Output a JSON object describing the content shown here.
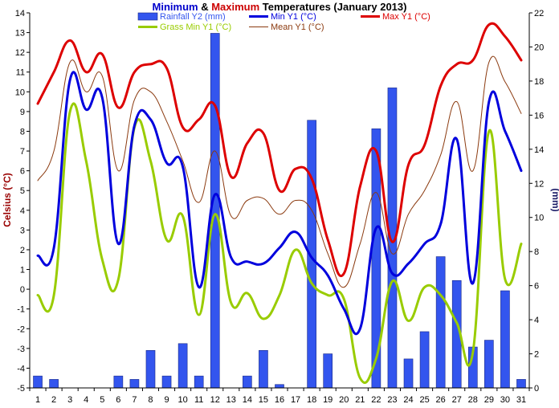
{
  "chart_data": {
    "type": "line",
    "title_parts": [
      {
        "text": "Minimum",
        "color": "#0000cc"
      },
      {
        "text": " & ",
        "color": "#000000"
      },
      {
        "text": "Maximum",
        "color": "#cc0000"
      },
      {
        "text": " Temperatures (January 2013)",
        "color": "#000000"
      }
    ],
    "ylabel": "Celsius (°C)",
    "y2label": "(mm)",
    "x": [
      1,
      2,
      3,
      4,
      5,
      6,
      7,
      8,
      9,
      10,
      11,
      12,
      13,
      14,
      15,
      16,
      17,
      18,
      19,
      20,
      21,
      22,
      23,
      24,
      25,
      26,
      27,
      28,
      29,
      30,
      31
    ],
    "x_tick_labels": [
      "1",
      "2",
      "3",
      "4",
      "5",
      "6",
      "7",
      "8",
      "9",
      "10",
      "11",
      "12",
      "13",
      "14",
      "15",
      "16",
      "17",
      "18",
      "19",
      "20",
      "21",
      "22",
      "23",
      "24",
      "25",
      "26",
      "27",
      "28",
      "29",
      "30",
      "31"
    ],
    "ylim": [
      -5,
      14
    ],
    "y_ticks": [
      -5,
      -4,
      -3,
      -2,
      -1,
      0,
      1,
      2,
      3,
      4,
      5,
      6,
      7,
      8,
      9,
      10,
      11,
      12,
      13,
      14
    ],
    "y2lim": [
      0,
      22
    ],
    "y2_ticks": [
      0,
      2,
      4,
      6,
      8,
      10,
      12,
      14,
      16,
      18,
      20,
      22
    ],
    "series": [
      {
        "name": "Rainfall Y2 (mm)",
        "kind": "bar",
        "axis": "y2",
        "color": "#3355ee",
        "values": [
          0.7,
          0.5,
          0,
          0,
          0,
          0.7,
          0.5,
          2.2,
          0.7,
          2.6,
          0.7,
          20.8,
          0,
          0.7,
          2.2,
          0.2,
          0,
          15.7,
          2,
          0,
          0,
          15.2,
          17.6,
          1.7,
          3.3,
          7.7,
          6.3,
          2.4,
          2.8,
          5.7,
          0.5
        ]
      },
      {
        "name": "Grass Min Y1 (°C)",
        "kind": "line",
        "axis": "y1",
        "color": "#99cc00",
        "values": [
          -0.3,
          -0.3,
          9.0,
          6.5,
          1.5,
          0.5,
          8.2,
          6.5,
          2.5,
          3.7,
          -1.3,
          3.8,
          -0.7,
          -0.2,
          -1.5,
          -0.3,
          2.0,
          0.3,
          -0.3,
          -0.5,
          -4.5,
          -3.5,
          0.4,
          -1.6,
          0.1,
          -0.3,
          -1.7,
          -3.2,
          8.0,
          0.5,
          2.3
        ]
      },
      {
        "name": "Mean Y1 (°C)",
        "kind": "line",
        "axis": "y1",
        "color": "#8b3a0f",
        "values": [
          5.5,
          7.0,
          11.5,
          10.0,
          10.8,
          6.0,
          9.6,
          10.0,
          8.5,
          6.5,
          4.4,
          7.0,
          3.7,
          4.5,
          4.6,
          3.8,
          4.5,
          4.0,
          1.8,
          0.1,
          2.3,
          4.9,
          1.8,
          3.8,
          5.0,
          6.8,
          9.5,
          6.0,
          11.5,
          10.5,
          8.9
        ]
      },
      {
        "name": "Min Y1 (°C)",
        "kind": "line",
        "axis": "y1",
        "color": "#0000dd",
        "values": [
          1.7,
          2.1,
          10.6,
          9.1,
          9.7,
          2.3,
          8.3,
          8.6,
          6.4,
          6.2,
          0.1,
          4.8,
          1.6,
          1.4,
          1.3,
          2.1,
          2.9,
          1.6,
          0.7,
          -1.0,
          -2.0,
          3.1,
          0.8,
          1.3,
          2.3,
          3.3,
          7.6,
          0.3,
          9.5,
          8.0,
          6.0
        ]
      },
      {
        "name": "Max Y1 (°C)",
        "kind": "line",
        "axis": "y1",
        "color": "#dd0000",
        "values": [
          9.4,
          11.0,
          12.6,
          11.0,
          11.9,
          9.2,
          11.0,
          11.4,
          11.2,
          8.2,
          8.6,
          9.3,
          5.7,
          7.4,
          7.9,
          5.0,
          6.1,
          5.6,
          2.5,
          0.8,
          5.2,
          7.0,
          2.4,
          6.3,
          7.3,
          10.3,
          11.4,
          11.6,
          13.4,
          12.8,
          11.6
        ]
      }
    ],
    "legend": [
      {
        "label": "Rainfall Y2 (mm)",
        "color": "#3355ee",
        "swatch": "bar"
      },
      {
        "label": "Min Y1 (°C)",
        "color": "#0000dd",
        "swatch": "line-thick"
      },
      {
        "label": "Max Y1 (°C)",
        "color": "#dd0000",
        "swatch": "line-thick"
      },
      {
        "label": "Grass Min Y1 (°C)",
        "color": "#99cc00",
        "swatch": "line-thick"
      },
      {
        "label": "Mean Y1 (°C)",
        "color": "#8b3a0f",
        "swatch": "line-thin"
      }
    ],
    "legend_position": "top",
    "grid": false,
    "colors": {
      "ylabel": "#990000",
      "y2label": "#1a1a66",
      "axis": "#000000"
    }
  }
}
